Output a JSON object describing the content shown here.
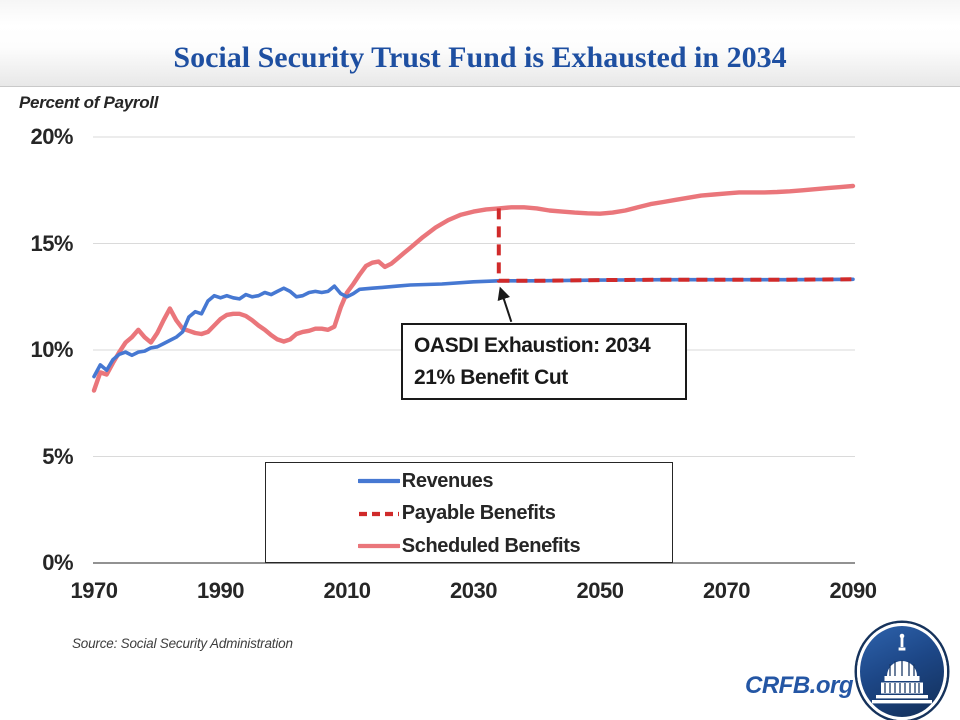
{
  "header": {
    "title": "Social Security Trust Fund is Exhausted in 2034"
  },
  "footer": {
    "source": "Source: Social Security Administration",
    "brand": "CRFB.org",
    "logo": "capitol-dome-logo"
  },
  "colors": {
    "title_blue": "#1e4fa1",
    "brand_blue": "#2456a4",
    "revenues_blue": "#4678d2",
    "payable_red": "#d02a2a",
    "scheduled_salmon": "#ea767b",
    "gridline": "#dadada",
    "axis_line": "#6e6e6e"
  },
  "chart_data": {
    "type": "line",
    "title": "Social Security Trust Fund is Exhausted in 2034",
    "xlabel": "",
    "ylabel": "Percent of Payroll",
    "xlim": [
      1970,
      2090
    ],
    "ylim": [
      0,
      20
    ],
    "grid": "horizontal",
    "legend_position": "bottom-center-boxed",
    "x_ticks": [
      "1970",
      "1990",
      "2010",
      "2030",
      "2050",
      "2070",
      "2090"
    ],
    "y_ticks": [
      "0%",
      "5%",
      "10%",
      "15%",
      "20%"
    ],
    "annotation": {
      "line1": "OASDI Exhaustion: 2034",
      "line2": "21% Benefit Cut",
      "arrow_target": [
        2034,
        13.25
      ]
    },
    "series": [
      {
        "name": "Revenues",
        "color": "#4678d2",
        "style": "solid",
        "points": [
          [
            1970,
            8.75
          ],
          [
            1971,
            9.3
          ],
          [
            1972,
            9.05
          ],
          [
            1973,
            9.55
          ],
          [
            1974,
            9.8
          ],
          [
            1975,
            9.9
          ],
          [
            1976,
            9.75
          ],
          [
            1977,
            9.9
          ],
          [
            1978,
            9.95
          ],
          [
            1979,
            10.1
          ],
          [
            1980,
            10.15
          ],
          [
            1981,
            10.3
          ],
          [
            1982,
            10.45
          ],
          [
            1983,
            10.6
          ],
          [
            1984,
            10.85
          ],
          [
            1985,
            11.55
          ],
          [
            1986,
            11.8
          ],
          [
            1987,
            11.7
          ],
          [
            1988,
            12.3
          ],
          [
            1989,
            12.55
          ],
          [
            1990,
            12.45
          ],
          [
            1991,
            12.55
          ],
          [
            1992,
            12.45
          ],
          [
            1993,
            12.4
          ],
          [
            1994,
            12.6
          ],
          [
            1995,
            12.5
          ],
          [
            1996,
            12.55
          ],
          [
            1997,
            12.7
          ],
          [
            1998,
            12.6
          ],
          [
            1999,
            12.75
          ],
          [
            2000,
            12.9
          ],
          [
            2001,
            12.75
          ],
          [
            2002,
            12.5
          ],
          [
            2003,
            12.55
          ],
          [
            2004,
            12.7
          ],
          [
            2005,
            12.75
          ],
          [
            2006,
            12.7
          ],
          [
            2007,
            12.75
          ],
          [
            2008,
            13.0
          ],
          [
            2009,
            12.65
          ],
          [
            2010,
            12.5
          ],
          [
            2011,
            12.65
          ],
          [
            2012,
            12.85
          ],
          [
            2014,
            12.9
          ],
          [
            2016,
            12.95
          ],
          [
            2018,
            13.0
          ],
          [
            2020,
            13.05
          ],
          [
            2025,
            13.1
          ],
          [
            2030,
            13.2
          ],
          [
            2034,
            13.25
          ],
          [
            2040,
            13.25
          ],
          [
            2050,
            13.28
          ],
          [
            2060,
            13.3
          ],
          [
            2070,
            13.3
          ],
          [
            2080,
            13.3
          ],
          [
            2090,
            13.32
          ]
        ]
      },
      {
        "name": "Payable Benefits",
        "color": "#d02a2a",
        "style": "dashed",
        "points": [
          [
            2034,
            16.65
          ],
          [
            2034,
            13.25
          ],
          [
            2040,
            13.25
          ],
          [
            2050,
            13.28
          ],
          [
            2060,
            13.3
          ],
          [
            2070,
            13.3
          ],
          [
            2080,
            13.3
          ],
          [
            2090,
            13.32
          ]
        ]
      },
      {
        "name": "Scheduled Benefits",
        "color": "#ea767b",
        "style": "solid",
        "points": [
          [
            1970,
            8.1
          ],
          [
            1971,
            8.95
          ],
          [
            1972,
            8.85
          ],
          [
            1973,
            9.4
          ],
          [
            1974,
            9.9
          ],
          [
            1975,
            10.35
          ],
          [
            1976,
            10.6
          ],
          [
            1977,
            10.95
          ],
          [
            1978,
            10.6
          ],
          [
            1979,
            10.35
          ],
          [
            1980,
            10.8
          ],
          [
            1981,
            11.4
          ],
          [
            1982,
            11.95
          ],
          [
            1983,
            11.4
          ],
          [
            1984,
            11.0
          ],
          [
            1985,
            10.9
          ],
          [
            1986,
            10.8
          ],
          [
            1987,
            10.75
          ],
          [
            1988,
            10.85
          ],
          [
            1989,
            11.15
          ],
          [
            1990,
            11.45
          ],
          [
            1991,
            11.65
          ],
          [
            1992,
            11.7
          ],
          [
            1993,
            11.7
          ],
          [
            1994,
            11.6
          ],
          [
            1995,
            11.4
          ],
          [
            1996,
            11.15
          ],
          [
            1997,
            10.95
          ],
          [
            1998,
            10.7
          ],
          [
            1999,
            10.5
          ],
          [
            2000,
            10.4
          ],
          [
            2001,
            10.5
          ],
          [
            2002,
            10.75
          ],
          [
            2003,
            10.85
          ],
          [
            2004,
            10.9
          ],
          [
            2005,
            11.0
          ],
          [
            2006,
            11.0
          ],
          [
            2007,
            10.95
          ],
          [
            2008,
            11.1
          ],
          [
            2009,
            12.0
          ],
          [
            2010,
            12.7
          ],
          [
            2011,
            13.1
          ],
          [
            2012,
            13.55
          ],
          [
            2013,
            13.95
          ],
          [
            2014,
            14.1
          ],
          [
            2015,
            14.15
          ],
          [
            2016,
            13.9
          ],
          [
            2017,
            14.05
          ],
          [
            2018,
            14.3
          ],
          [
            2019,
            14.55
          ],
          [
            2020,
            14.8
          ],
          [
            2022,
            15.3
          ],
          [
            2024,
            15.75
          ],
          [
            2026,
            16.1
          ],
          [
            2028,
            16.35
          ],
          [
            2030,
            16.5
          ],
          [
            2032,
            16.6
          ],
          [
            2034,
            16.65
          ],
          [
            2036,
            16.7
          ],
          [
            2038,
            16.7
          ],
          [
            2040,
            16.65
          ],
          [
            2042,
            16.55
          ],
          [
            2044,
            16.5
          ],
          [
            2046,
            16.45
          ],
          [
            2048,
            16.42
          ],
          [
            2050,
            16.4
          ],
          [
            2052,
            16.45
          ],
          [
            2054,
            16.55
          ],
          [
            2056,
            16.7
          ],
          [
            2058,
            16.85
          ],
          [
            2060,
            16.95
          ],
          [
            2062,
            17.05
          ],
          [
            2064,
            17.15
          ],
          [
            2066,
            17.25
          ],
          [
            2068,
            17.3
          ],
          [
            2070,
            17.35
          ],
          [
            2072,
            17.4
          ],
          [
            2074,
            17.4
          ],
          [
            2076,
            17.4
          ],
          [
            2078,
            17.42
          ],
          [
            2080,
            17.45
          ],
          [
            2082,
            17.5
          ],
          [
            2084,
            17.55
          ],
          [
            2086,
            17.6
          ],
          [
            2088,
            17.65
          ],
          [
            2090,
            17.7
          ]
        ]
      }
    ]
  }
}
